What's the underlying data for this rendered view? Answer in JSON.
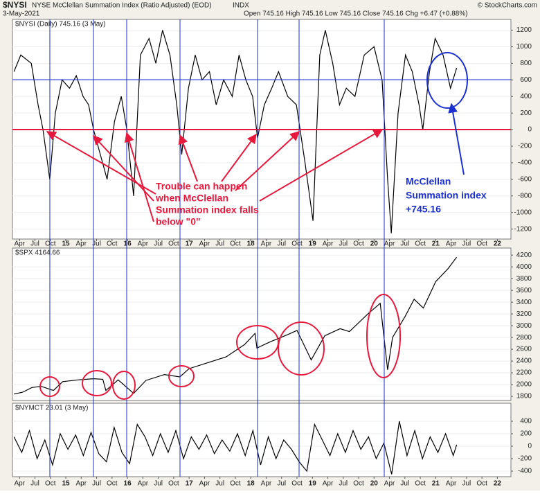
{
  "header": {
    "symbol": "$NYSI",
    "name": "NYSE McClellan Summation Index (Ratio Adjusted) (EOD)",
    "exchange": "INDX",
    "date": "3-May-2021",
    "ohlc": "Open 745.16  High 745.16  Low 745.16  Close 745.16  Chg +6.47 (+0.88%)",
    "source": "© StockCharts.com"
  },
  "chart_data": [
    {
      "type": "line",
      "series": [
        {
          "name": "$NYSI (Daily) 745.16 (3 May)",
          "color": "#000000",
          "values": [
            700,
            900,
            800,
            300,
            0,
            -600,
            200,
            600,
            500,
            650,
            400,
            300,
            0,
            -300,
            -600,
            100,
            400,
            0,
            -800,
            900,
            1100,
            800,
            1200,
            900,
            300,
            -300,
            500,
            900,
            600,
            700,
            300,
            600,
            400,
            900,
            600,
            400,
            -100,
            300,
            500,
            700,
            400,
            300,
            -400,
            -1100,
            900,
            1200,
            800,
            300,
            500,
            400,
            900,
            1000,
            600,
            -600,
            -1250,
            200,
            900,
            700,
            300,
            0,
            700,
            1100,
            900,
            500,
            745.16
          ]
        }
      ],
      "x": [
        2014.16,
        2014.27,
        2014.44,
        2014.55,
        2014.63,
        2014.74,
        2014.83,
        2014.94,
        2015.06,
        2015.17,
        2015.28,
        2015.37,
        2015.45,
        2015.56,
        2015.67,
        2015.79,
        2015.9,
        2015.99,
        2016.1,
        2016.21,
        2016.35,
        2016.46,
        2016.57,
        2016.69,
        2016.8,
        2016.88,
        2016.99,
        2017.1,
        2017.21,
        2017.33,
        2017.44,
        2017.56,
        2017.7,
        2017.81,
        2017.92,
        2018.03,
        2018.11,
        2018.22,
        2018.34,
        2018.45,
        2018.6,
        2018.74,
        2018.88,
        2019.01,
        2019.12,
        2019.21,
        2019.33,
        2019.44,
        2019.55,
        2019.69,
        2019.84,
        2020.0,
        2020.13,
        2020.22,
        2020.28,
        2020.39,
        2020.51,
        2020.62,
        2020.73,
        2020.79,
        2020.9,
        2020.99,
        2021.12,
        2021.24,
        2021.34
      ],
      "xlim": [
        2014.135,
        2022.22
      ],
      "ylim": [
        -1320,
        1330
      ],
      "yticks": [
        -1200,
        -1000,
        -800,
        -600,
        -400,
        -200,
        0,
        200,
        400,
        600,
        800,
        1000,
        1200
      ],
      "xticks": [
        {
          "value": 2014.25,
          "label": "Apr"
        },
        {
          "value": 2014.5,
          "label": "Jul"
        },
        {
          "value": 2014.75,
          "label": "Oct"
        },
        {
          "value": 2015,
          "label": "15"
        },
        {
          "value": 2015.25,
          "label": "Apr"
        },
        {
          "value": 2015.5,
          "label": "Jul"
        },
        {
          "value": 2015.75,
          "label": "Oct"
        },
        {
          "value": 2016,
          "label": "16"
        },
        {
          "value": 2016.25,
          "label": "Apr"
        },
        {
          "value": 2016.5,
          "label": "Jul"
        },
        {
          "value": 2016.75,
          "label": "Oct"
        },
        {
          "value": 2017,
          "label": "17"
        },
        {
          "value": 2017.25,
          "label": "Apr"
        },
        {
          "value": 2017.5,
          "label": "Jul"
        },
        {
          "value": 2017.75,
          "label": "Oct"
        },
        {
          "value": 2018,
          "label": "18"
        },
        {
          "value": 2018.25,
          "label": "Apr"
        },
        {
          "value": 2018.5,
          "label": "Jul"
        },
        {
          "value": 2018.75,
          "label": "Oct"
        },
        {
          "value": 2019,
          "label": "19"
        },
        {
          "value": 2019.25,
          "label": "Apr"
        },
        {
          "value": 2019.5,
          "label": "Jul"
        },
        {
          "value": 2019.75,
          "label": "Oct"
        },
        {
          "value": 2020,
          "label": "20"
        },
        {
          "value": 2020.25,
          "label": "Apr"
        },
        {
          "value": 2020.5,
          "label": "Jul"
        },
        {
          "value": 2020.75,
          "label": "Oct"
        },
        {
          "value": 2021,
          "label": "21"
        },
        {
          "value": 2021.25,
          "label": "Apr"
        },
        {
          "value": 2021.5,
          "label": "Jul"
        },
        {
          "value": 2021.75,
          "label": "Oct"
        },
        {
          "value": 2022,
          "label": "22"
        }
      ]
    },
    {
      "type": "line",
      "series": [
        {
          "name": "$SPX 4164.66",
          "color": "#000000",
          "values": [
            1840,
            1870,
            1950,
            1970,
            1900,
            2050,
            2080,
            2100,
            2090,
            1900,
            2080,
            1850,
            2070,
            2170,
            2130,
            2270,
            2370,
            2470,
            2680,
            2870,
            2620,
            2720,
            2850,
            2920,
            2420,
            2830,
            2950,
            2900,
            3200,
            3380,
            2250,
            2800,
            3150,
            3450,
            3300,
            3750,
            3970,
            4164.66
          ]
        }
      ],
      "x": [
        2014.16,
        2014.3,
        2014.45,
        2014.6,
        2014.8,
        2014.95,
        2015.2,
        2015.45,
        2015.6,
        2015.65,
        2015.85,
        2016.1,
        2016.3,
        2016.6,
        2016.85,
        2017.0,
        2017.3,
        2017.6,
        2017.9,
        2018.07,
        2018.1,
        2018.3,
        2018.6,
        2018.75,
        2018.98,
        2019.2,
        2019.45,
        2019.6,
        2019.9,
        2020.1,
        2020.22,
        2020.3,
        2020.5,
        2020.65,
        2020.8,
        2021.0,
        2021.2,
        2021.34
      ],
      "xlim": [
        2014.135,
        2022.22
      ],
      "ylim": [
        1730,
        4320
      ],
      "yticks": [
        1800,
        2000,
        2200,
        2400,
        2600,
        2800,
        3000,
        3200,
        3400,
        3600,
        3800,
        4000,
        4200
      ]
    },
    {
      "type": "line",
      "series": [
        {
          "name": "$NYMCT 23.01 (3 May)",
          "color": "#000000",
          "values": [
            150,
            -100,
            250,
            -200,
            100,
            -300,
            200,
            -50,
            180,
            -150,
            220,
            -120,
            -250,
            300,
            -100,
            -280,
            350,
            150,
            -150,
            200,
            -100,
            250,
            -200,
            150,
            -50,
            180,
            -120,
            100,
            -80,
            200,
            -150,
            250,
            -300,
            150,
            -200,
            100,
            -50,
            -250,
            -400,
            350,
            100,
            -150,
            200,
            -100,
            250,
            -50,
            150,
            -200,
            50,
            -450,
            400,
            -150,
            250,
            -200,
            150,
            -100,
            200,
            -150,
            23.01
          ]
        }
      ],
      "x": [
        2014.16,
        2014.285,
        2014.41,
        2014.535,
        2014.66,
        2014.785,
        2014.91,
        2015.035,
        2015.16,
        2015.285,
        2015.41,
        2015.535,
        2015.66,
        2015.785,
        2015.91,
        2016.035,
        2016.16,
        2016.285,
        2016.41,
        2016.535,
        2016.66,
        2016.785,
        2016.91,
        2017.035,
        2017.16,
        2017.285,
        2017.41,
        2017.535,
        2017.66,
        2017.785,
        2017.91,
        2018.035,
        2018.16,
        2018.285,
        2018.41,
        2018.535,
        2018.66,
        2018.785,
        2018.91,
        2019.035,
        2019.16,
        2019.285,
        2019.41,
        2019.535,
        2019.66,
        2019.785,
        2019.91,
        2020.035,
        2020.16,
        2020.285,
        2020.41,
        2020.535,
        2020.66,
        2020.785,
        2020.91,
        2021.035,
        2021.16,
        2021.285,
        2021.34
      ],
      "xlim": [
        2014.135,
        2022.22
      ],
      "ylim": [
        -489,
        689
      ],
      "yticks": [
        -400,
        -200,
        0,
        200,
        400
      ],
      "xticks": [
        {
          "value": 2014.25,
          "label": "Apr"
        },
        {
          "value": 2014.5,
          "label": "Jul"
        },
        {
          "value": 2014.75,
          "label": "Oct"
        },
        {
          "value": 2015,
          "label": "15"
        },
        {
          "value": 2015.25,
          "label": "Apr"
        },
        {
          "value": 2015.5,
          "label": "Jul"
        },
        {
          "value": 2015.75,
          "label": "Oct"
        },
        {
          "value": 2016,
          "label": "16"
        },
        {
          "value": 2016.25,
          "label": "Apr"
        },
        {
          "value": 2016.5,
          "label": "Jul"
        },
        {
          "value": 2016.75,
          "label": "Oct"
        },
        {
          "value": 2017,
          "label": "17"
        },
        {
          "value": 2017.25,
          "label": "Apr"
        },
        {
          "value": 2017.5,
          "label": "Jul"
        },
        {
          "value": 2017.75,
          "label": "Oct"
        },
        {
          "value": 2018,
          "label": "18"
        },
        {
          "value": 2018.25,
          "label": "Apr"
        },
        {
          "value": 2018.5,
          "label": "Jul"
        },
        {
          "value": 2018.75,
          "label": "Oct"
        },
        {
          "value": 2019,
          "label": "19"
        },
        {
          "value": 2019.25,
          "label": "Apr"
        },
        {
          "value": 2019.5,
          "label": "Jul"
        },
        {
          "value": 2019.75,
          "label": "Oct"
        },
        {
          "value": 2020,
          "label": "20"
        },
        {
          "value": 2020.25,
          "label": "Apr"
        },
        {
          "value": 2020.5,
          "label": "Jul"
        },
        {
          "value": 2020.75,
          "label": "Oct"
        },
        {
          "value": 2021,
          "label": "21"
        },
        {
          "value": 2021.25,
          "label": "Apr"
        },
        {
          "value": 2021.5,
          "label": "Jul"
        },
        {
          "value": 2021.75,
          "label": "Oct"
        },
        {
          "value": 2022,
          "label": "22"
        }
      ]
    }
  ],
  "annotations": {
    "trouble": [
      "Trouble can happen",
      "when McClellan",
      "Summation index falls",
      "below \"0\""
    ],
    "mcclellan": [
      "McClellan",
      "Summation index",
      "+745.16"
    ]
  }
}
